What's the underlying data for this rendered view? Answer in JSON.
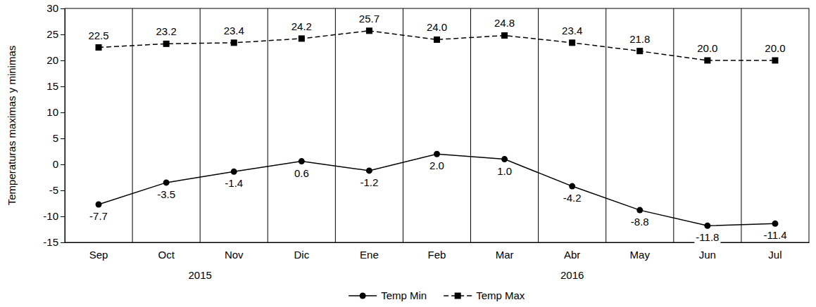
{
  "chart_data": {
    "type": "line",
    "y_label": "Temperaturas maximas y minimas",
    "categories": [
      "Sep",
      "Oct",
      "Nov",
      "Dic",
      "Ene",
      "Feb",
      "Mar",
      "Abr",
      "May",
      "Jun",
      "Jul"
    ],
    "x_groups": [
      {
        "label": "2015",
        "from": "Sep",
        "to": "Dic"
      },
      {
        "label": "2016",
        "from": "Ene",
        "to": "Jul"
      }
    ],
    "series": [
      {
        "name": "Temp Min",
        "color": "#000000",
        "marker": "circle",
        "line_style": "solid",
        "values": [
          -7.7,
          -3.5,
          -1.4,
          0.6,
          -1.2,
          2.0,
          1.0,
          -4.2,
          -8.8,
          -11.8,
          -11.4
        ],
        "value_labels": [
          "-7.7",
          "-3.5",
          "-1.4",
          "0.6",
          "-1.2",
          "2.0",
          "1.0",
          "-4.2",
          "-8.8",
          "-11.8",
          "-11.4"
        ]
      },
      {
        "name": "Temp Max",
        "color": "#000000",
        "marker": "square",
        "line_style": "dashed",
        "values": [
          22.5,
          23.2,
          23.4,
          24.2,
          25.7,
          24.0,
          24.8,
          23.4,
          21.8,
          20.0,
          20.0
        ],
        "value_labels": [
          "22.5",
          "23.2",
          "23.4",
          "24.2",
          "25.7",
          "24.0",
          "24.8",
          "23.4",
          "21.8",
          "20.0",
          "20.0"
        ]
      }
    ],
    "ylim": [
      -15,
      30
    ],
    "yticks": [
      -15,
      -10,
      -5,
      0,
      5,
      10,
      15,
      20,
      25,
      30
    ],
    "grid": true,
    "data_labels": true,
    "legend": "bottom"
  }
}
